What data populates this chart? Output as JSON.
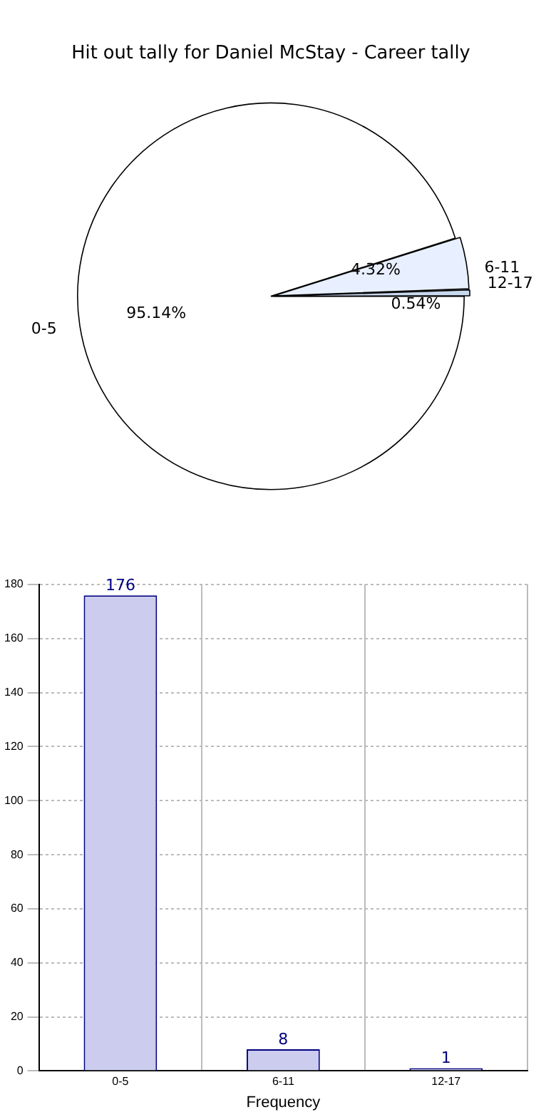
{
  "chart_data": [
    {
      "type": "pie",
      "title": "Hit out tally for Daniel McStay - Career tally",
      "categories": [
        "0-5",
        "6-11",
        "12-17"
      ],
      "values": [
        95.14,
        4.32,
        0.54
      ],
      "colors": [
        "#ffffff",
        "#e8f0ff",
        "#c8d8ee"
      ],
      "value_labels": [
        "95.14%",
        "4.32%",
        "0.54%"
      ],
      "legend": false
    },
    {
      "type": "bar",
      "categories": [
        "0-5",
        "6-11",
        "12-17"
      ],
      "values": [
        176,
        8,
        1
      ],
      "color": "#ccccee",
      "xlabel": "Frequency",
      "ylim": [
        0,
        180
      ],
      "yticks": [
        0,
        20,
        40,
        60,
        80,
        100,
        120,
        140,
        160,
        180
      ],
      "grid": true,
      "data_labels": true,
      "legend": false
    }
  ]
}
